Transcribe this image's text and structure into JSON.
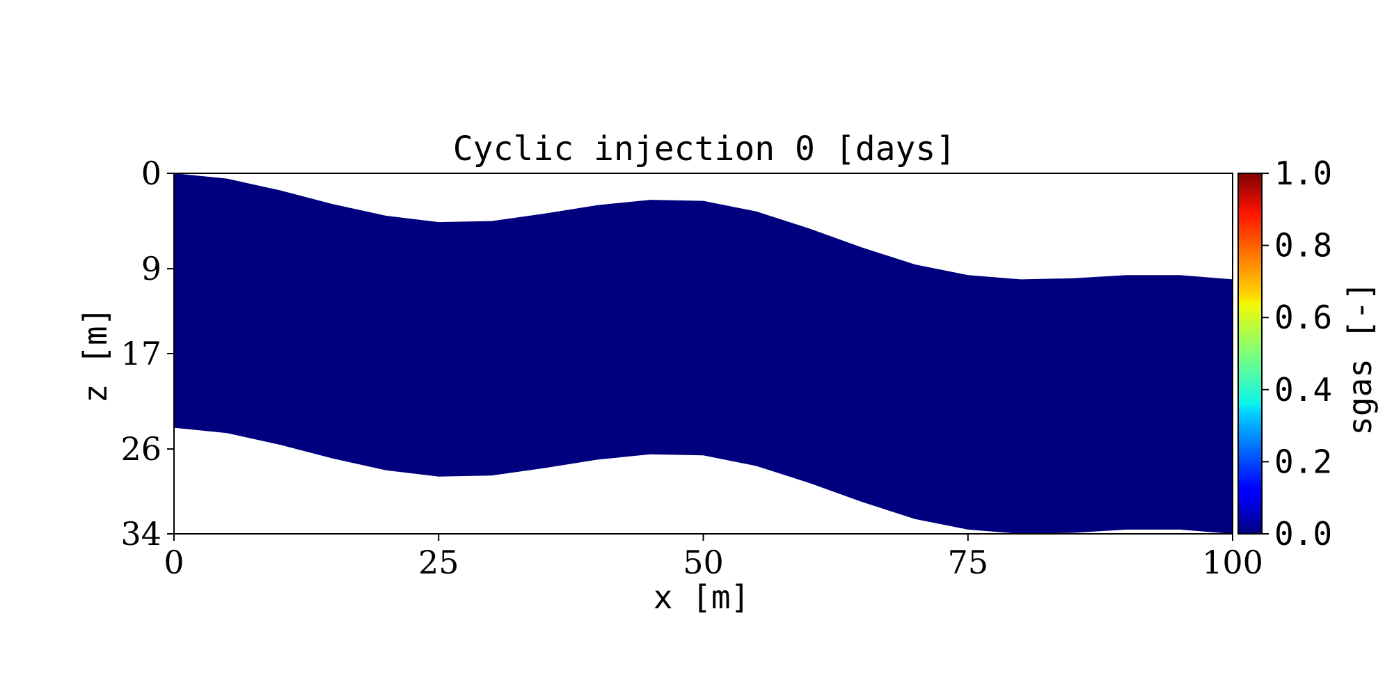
{
  "chart_data": {
    "type": "heatmap",
    "title": "Cyclic injection 0 [days]",
    "xlabel": "x [m]",
    "ylabel": "z [m]",
    "xlim": [
      0,
      100
    ],
    "ylim": [
      34,
      0
    ],
    "x_ticks": [
      "0",
      "25",
      "50",
      "75",
      "100"
    ],
    "y_ticks": [
      "0",
      "9",
      "17",
      "26",
      "34"
    ],
    "grid": false,
    "field": {
      "name": "sgas",
      "value_everywhere": 0.0,
      "color": "#00007f",
      "x": [
        0,
        5,
        10,
        15,
        20,
        25,
        30,
        35,
        40,
        45,
        50,
        55,
        60,
        65,
        70,
        75,
        80,
        85,
        90,
        95,
        100
      ],
      "top": [
        0.0,
        0.5,
        1.6,
        2.9,
        4.0,
        4.6,
        4.5,
        3.8,
        3.0,
        2.5,
        2.6,
        3.6,
        5.2,
        7.0,
        8.6,
        9.6,
        10.0,
        9.9,
        9.6,
        9.6,
        10.0
      ],
      "bottom": [
        24.0,
        24.5,
        25.6,
        26.9,
        28.0,
        28.6,
        28.5,
        27.8,
        27.0,
        26.5,
        26.6,
        27.6,
        29.2,
        31.0,
        32.6,
        33.6,
        34.0,
        33.9,
        33.6,
        33.6,
        34.0
      ]
    },
    "colorbar": {
      "label": "sgas [-]",
      "min": 0.0,
      "max": 1.0,
      "colormap": "jet",
      "ticks": [
        "0.0",
        "0.2",
        "0.4",
        "0.6",
        "0.8",
        "1.0"
      ],
      "placement": "right"
    }
  }
}
